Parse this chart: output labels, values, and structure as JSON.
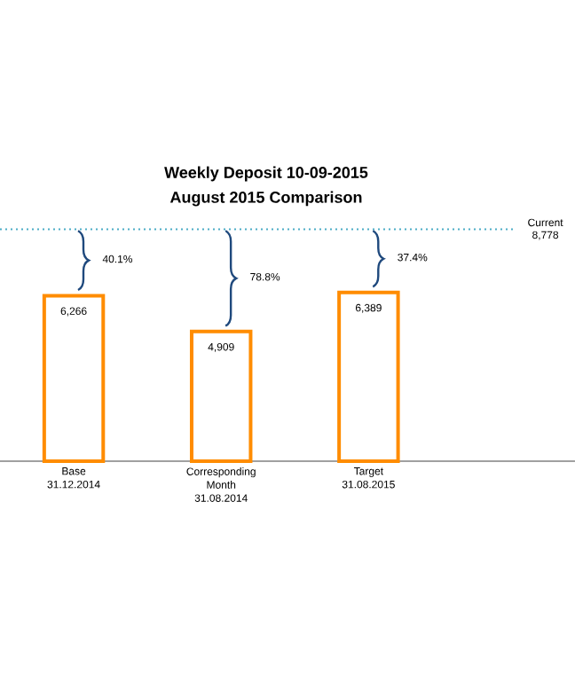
{
  "chart_data": {
    "type": "bar",
    "title": "Weekly Deposit  10-09-2015",
    "subtitle": "August 2015 Comparison",
    "categories": [
      "Base 31.12.2014",
      "Corresponding Month 31.08.2014",
      "Target 31.08.2015"
    ],
    "values": [
      6266,
      4909,
      6389
    ],
    "color": "#ff8c00",
    "value_labels": [
      "6,266",
      "4,909",
      "6,389"
    ],
    "tick_labels": "x",
    "ref_lines": [
      {
        "axis": "y",
        "value": 8778,
        "label": "Current 8,778",
        "color": "#4bacc6",
        "line_style": "dotted"
      }
    ],
    "annotations": [
      "40.1%",
      "78.8%",
      "37.4%"
    ]
  }
}
